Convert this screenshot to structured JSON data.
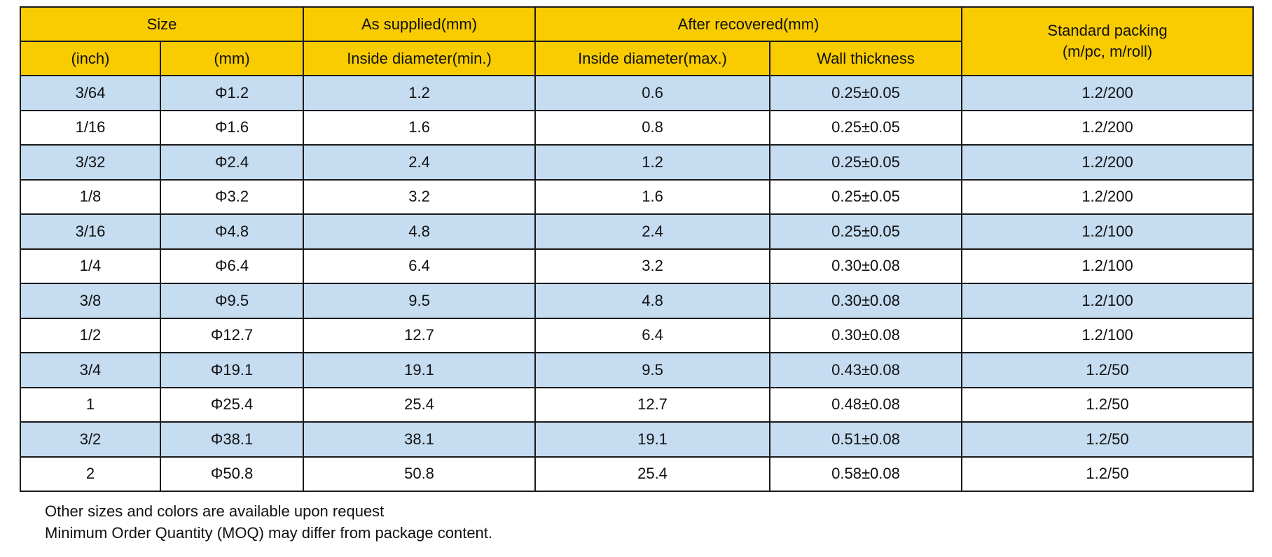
{
  "header": {
    "size": "Size",
    "as_supplied": "As supplied(mm)",
    "after_recovered": "After recovered(mm)",
    "packing_line1": "Standard packing",
    "packing_line2": "(m/pc, m/roll)",
    "inch": "(inch)",
    "mm": "(mm)",
    "inside_min": "Inside diameter(min.)",
    "inside_max": "Inside diameter(max.)",
    "wall": "Wall thickness"
  },
  "rows": [
    [
      "3/64",
      "Φ1.2",
      "1.2",
      "0.6",
      "0.25±0.05",
      "1.2/200"
    ],
    [
      "1/16",
      "Φ1.6",
      "1.6",
      "0.8",
      "0.25±0.05",
      "1.2/200"
    ],
    [
      "3/32",
      "Φ2.4",
      "2.4",
      "1.2",
      "0.25±0.05",
      "1.2/200"
    ],
    [
      "1/8",
      "Φ3.2",
      "3.2",
      "1.6",
      "0.25±0.05",
      "1.2/200"
    ],
    [
      "3/16",
      "Φ4.8",
      "4.8",
      "2.4",
      "0.25±0.05",
      "1.2/100"
    ],
    [
      "1/4",
      "Φ6.4",
      "6.4",
      "3.2",
      "0.30±0.08",
      "1.2/100"
    ],
    [
      "3/8",
      "Φ9.5",
      "9.5",
      "4.8",
      "0.30±0.08",
      "1.2/100"
    ],
    [
      "1/2",
      "Φ12.7",
      "12.7",
      "6.4",
      "0.30±0.08",
      "1.2/100"
    ],
    [
      "3/4",
      "Φ19.1",
      "19.1",
      "9.5",
      "0.43±0.08",
      "1.2/50"
    ],
    [
      "1",
      "Φ25.4",
      "25.4",
      "12.7",
      "0.48±0.08",
      "1.2/50"
    ],
    [
      "3/2",
      "Φ38.1",
      "38.1",
      "19.1",
      "0.51±0.08",
      "1.2/50"
    ],
    [
      "2",
      "Φ50.8",
      "50.8",
      "25.4",
      "0.58±0.08",
      "1.2/50"
    ]
  ],
  "notes": [
    "Other sizes and colors are available upon request",
    "Minimum Order Quantity (MOQ) may differ from package content."
  ],
  "colors": {
    "header": "#f8cc00",
    "band": "#c5dcf1",
    "border": "#1a1a1a"
  }
}
